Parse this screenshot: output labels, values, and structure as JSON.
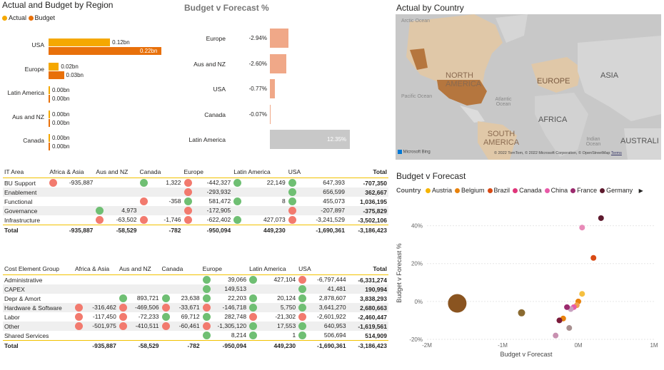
{
  "region_chart": {
    "title": "Actual and Budget by Region",
    "legend": [
      {
        "label": "Actual",
        "color": "#f5a800"
      },
      {
        "label": "Budget",
        "color": "#e8700a"
      }
    ],
    "regions": [
      {
        "name": "USA",
        "actual_label": "0.12bn",
        "budget_label": "0.22bn",
        "actual": 0.12,
        "budget": 0.22
      },
      {
        "name": "Europe",
        "actual_label": "0.02bn",
        "budget_label": "0.03bn",
        "actual": 0.02,
        "budget": 0.03
      },
      {
        "name": "Latin America",
        "actual_label": "0.00bn",
        "budget_label": "0.00bn",
        "actual": 0.0,
        "budget": 0.0
      },
      {
        "name": "Aus and NZ",
        "actual_label": "0.00bn",
        "budget_label": "0.00bn",
        "actual": 0.0,
        "budget": 0.0
      },
      {
        "name": "Canada",
        "actual_label": "0.00bn",
        "budget_label": "0.00bn",
        "actual": 0.0,
        "budget": 0.0
      }
    ]
  },
  "bvf_bars": {
    "title": "Budget v Forecast %",
    "rows": [
      {
        "name": "Europe",
        "label": "-2.94%",
        "value": -2.94
      },
      {
        "name": "Aus and NZ",
        "label": "-2.60%",
        "value": -2.6
      },
      {
        "name": "USA",
        "label": "-0.77%",
        "value": -0.77
      },
      {
        "name": "Canada",
        "label": "-0.07%",
        "value": -0.07
      },
      {
        "name": "Latin America",
        "label": "12.35%",
        "value": 12.35
      }
    ]
  },
  "map": {
    "title": "Actual by Country",
    "labels": {
      "arctic": "Arctic Ocean",
      "na": "NORTH AMERICA",
      "europe": "EUROPE",
      "asia": "ASIA",
      "pacific": "Pacific Ocean",
      "atlantic": "Atlantic Ocean",
      "africa": "AFRICA",
      "sa": "SOUTH AMERICA",
      "indian": "Indian Ocean",
      "aus": "AUSTRALI"
    },
    "bing": "Microsoft Bing",
    "copyright": "© 2022 TomTom, © 2022 Microsoft Corporation, © OpenStreetMap",
    "terms": "Terms"
  },
  "it_table": {
    "columns": [
      "IT Area",
      "Africa & Asia",
      "Aus and NZ",
      "Canada",
      "Europe",
      "Latin America",
      "USA",
      "Total"
    ],
    "rows": [
      {
        "name": "BU Support",
        "cells": [
          {
            "v": "-935,887",
            "i": "r"
          },
          {
            "v": "",
            "i": ""
          },
          {
            "v": "1,322",
            "i": "g"
          },
          {
            "v": "-442,327",
            "i": "r"
          },
          {
            "v": "22,149",
            "i": "g"
          },
          {
            "v": "647,393",
            "i": "g"
          }
        ],
        "total": "-707,350"
      },
      {
        "name": "Enablement",
        "cells": [
          {
            "v": "",
            "i": ""
          },
          {
            "v": "",
            "i": ""
          },
          {
            "v": "",
            "i": ""
          },
          {
            "v": "-293,932",
            "i": "r"
          },
          {
            "v": "",
            "i": ""
          },
          {
            "v": "656,599",
            "i": "g"
          }
        ],
        "total": "362,667"
      },
      {
        "name": "Functional",
        "cells": [
          {
            "v": "",
            "i": ""
          },
          {
            "v": "",
            "i": ""
          },
          {
            "v": "-358",
            "i": "r"
          },
          {
            "v": "581,472",
            "i": "g"
          },
          {
            "v": "8",
            "i": "g"
          },
          {
            "v": "455,073",
            "i": "g"
          }
        ],
        "total": "1,036,195"
      },
      {
        "name": "Governance",
        "cells": [
          {
            "v": "",
            "i": ""
          },
          {
            "v": "4,973",
            "i": "g"
          },
          {
            "v": "",
            "i": ""
          },
          {
            "v": "-172,905",
            "i": "r"
          },
          {
            "v": "",
            "i": ""
          },
          {
            "v": "-207,897",
            "i": "r"
          }
        ],
        "total": "-375,829"
      },
      {
        "name": "Infrastructure",
        "cells": [
          {
            "v": "",
            "i": ""
          },
          {
            "v": "-63,502",
            "i": "r"
          },
          {
            "v": "-1,746",
            "i": "r"
          },
          {
            "v": "-622,402",
            "i": "r"
          },
          {
            "v": "427,073",
            "i": "g"
          },
          {
            "v": "-3,241,529",
            "i": "r"
          }
        ],
        "total": "-3,502,106"
      }
    ],
    "total_row": {
      "name": "Total",
      "cells": [
        "-935,887",
        "-58,529",
        "-782",
        "-950,094",
        "449,230",
        "-1,690,361"
      ],
      "total": "-3,186,423"
    }
  },
  "ce_table": {
    "columns": [
      "Cost Element Group",
      "Africa & Asia",
      "Aus and NZ",
      "Canada",
      "Europe",
      "Latin America",
      "USA",
      "Total"
    ],
    "rows": [
      {
        "name": "Administrative",
        "cells": [
          {
            "v": "",
            "i": ""
          },
          {
            "v": "",
            "i": ""
          },
          {
            "v": "",
            "i": ""
          },
          {
            "v": "39,066",
            "i": "g"
          },
          {
            "v": "427,104",
            "i": "g"
          },
          {
            "v": "-6,797,444",
            "i": "r"
          }
        ],
        "total": "-6,331,274"
      },
      {
        "name": "CAPEX",
        "cells": [
          {
            "v": "",
            "i": ""
          },
          {
            "v": "",
            "i": ""
          },
          {
            "v": "",
            "i": ""
          },
          {
            "v": "149,513",
            "i": "g"
          },
          {
            "v": "",
            "i": ""
          },
          {
            "v": "41,481",
            "i": "g"
          }
        ],
        "total": "190,994"
      },
      {
        "name": "Depr & Amort",
        "cells": [
          {
            "v": "",
            "i": ""
          },
          {
            "v": "893,721",
            "i": "g"
          },
          {
            "v": "23,638",
            "i": "g"
          },
          {
            "v": "22,203",
            "i": "g"
          },
          {
            "v": "20,124",
            "i": "g"
          },
          {
            "v": "2,878,607",
            "i": "g"
          }
        ],
        "total": "3,838,293"
      },
      {
        "name": "Hardware & Software",
        "cells": [
          {
            "v": "-316,462",
            "i": "r"
          },
          {
            "v": "-469,506",
            "i": "r"
          },
          {
            "v": "-33,671",
            "i": "r"
          },
          {
            "v": "-146,718",
            "i": "r"
          },
          {
            "v": "5,750",
            "i": "g"
          },
          {
            "v": "3,641,270",
            "i": "g"
          }
        ],
        "total": "2,680,663"
      },
      {
        "name": "Labor",
        "cells": [
          {
            "v": "-117,450",
            "i": "r"
          },
          {
            "v": "-72,233",
            "i": "r"
          },
          {
            "v": "69,712",
            "i": "g"
          },
          {
            "v": "282,748",
            "i": "g"
          },
          {
            "v": "-21,302",
            "i": "r"
          },
          {
            "v": "-2,601,922",
            "i": "r"
          }
        ],
        "total": "-2,460,447"
      },
      {
        "name": "Other",
        "cells": [
          {
            "v": "-501,975",
            "i": "r"
          },
          {
            "v": "-410,511",
            "i": "r"
          },
          {
            "v": "-60,461",
            "i": "r"
          },
          {
            "v": "-1,305,120",
            "i": "r"
          },
          {
            "v": "17,553",
            "i": "g"
          },
          {
            "v": "640,953",
            "i": "g"
          }
        ],
        "total": "-1,619,561"
      },
      {
        "name": "Shared Services",
        "cells": [
          {
            "v": "",
            "i": ""
          },
          {
            "v": "",
            "i": ""
          },
          {
            "v": "",
            "i": ""
          },
          {
            "v": "8,214",
            "i": "g"
          },
          {
            "v": "1",
            "i": "g"
          },
          {
            "v": "506,694",
            "i": "g"
          }
        ],
        "total": "514,909"
      }
    ],
    "total_row": {
      "name": "Total",
      "cells": [
        "-935,887",
        "-58,529",
        "-782",
        "-950,094",
        "449,230",
        "-1,690,361"
      ],
      "total": "-3,186,423"
    }
  },
  "chart_data": {
    "type": "scatter",
    "title": "Budget v Forecast",
    "legend_title": "Country",
    "legend": [
      {
        "name": "Austria",
        "color": "#f5b400"
      },
      {
        "name": "Belgium",
        "color": "#e8820c"
      },
      {
        "name": "Brazil",
        "color": "#d94a14"
      },
      {
        "name": "Canada",
        "color": "#e0357a"
      },
      {
        "name": "China",
        "color": "#e85aa8"
      },
      {
        "name": "France",
        "color": "#9b2a6e"
      },
      {
        "name": "Germany",
        "color": "#5e1a2e"
      }
    ],
    "xlabel": "Budget v Forecast",
    "ylabel": "Budget v Forecast %",
    "xlim": [
      -2000000,
      1000000
    ],
    "ylim": [
      -20,
      50
    ],
    "xticks": [
      {
        "v": -2000000,
        "label": "-2M"
      },
      {
        "v": -1000000,
        "label": "-1M"
      },
      {
        "v": 0,
        "label": "0M"
      },
      {
        "v": 1000000,
        "label": "1M"
      }
    ],
    "yticks": [
      {
        "v": -20,
        "label": "-20%"
      },
      {
        "v": 0,
        "label": "0%"
      },
      {
        "v": 20,
        "label": "20%"
      },
      {
        "v": 40,
        "label": "40%"
      }
    ],
    "points": [
      {
        "x": -1600000,
        "y": -1,
        "r": 13,
        "color": "#8a5420"
      },
      {
        "x": -750000,
        "y": -6,
        "r": 5,
        "color": "#8a6a30"
      },
      {
        "x": 300000,
        "y": 44,
        "r": 4,
        "color": "#5e1a2e"
      },
      {
        "x": 200000,
        "y": 23,
        "r": 4,
        "color": "#d94a14"
      },
      {
        "x": 50000,
        "y": 39,
        "r": 4,
        "color": "#e88ab8"
      },
      {
        "x": 50000,
        "y": 4,
        "r": 4,
        "color": "#f5c040"
      },
      {
        "x": 0,
        "y": 0,
        "r": 4,
        "color": "#e8820c"
      },
      {
        "x": -20000,
        "y": -2,
        "r": 4,
        "color": "#f0a050"
      },
      {
        "x": -60000,
        "y": -3,
        "r": 4,
        "color": "#e85aa8"
      },
      {
        "x": -100000,
        "y": -4,
        "r": 4,
        "color": "#c8a0c0"
      },
      {
        "x": -150000,
        "y": -3,
        "r": 4,
        "color": "#9b2a6e"
      },
      {
        "x": -200000,
        "y": -9,
        "r": 4,
        "color": "#e8820c"
      },
      {
        "x": -250000,
        "y": -10,
        "r": 4,
        "color": "#7a1a3a"
      },
      {
        "x": -120000,
        "y": -14,
        "r": 4,
        "color": "#a89090"
      },
      {
        "x": -300000,
        "y": -18,
        "r": 4,
        "color": "#c890b0"
      }
    ]
  }
}
